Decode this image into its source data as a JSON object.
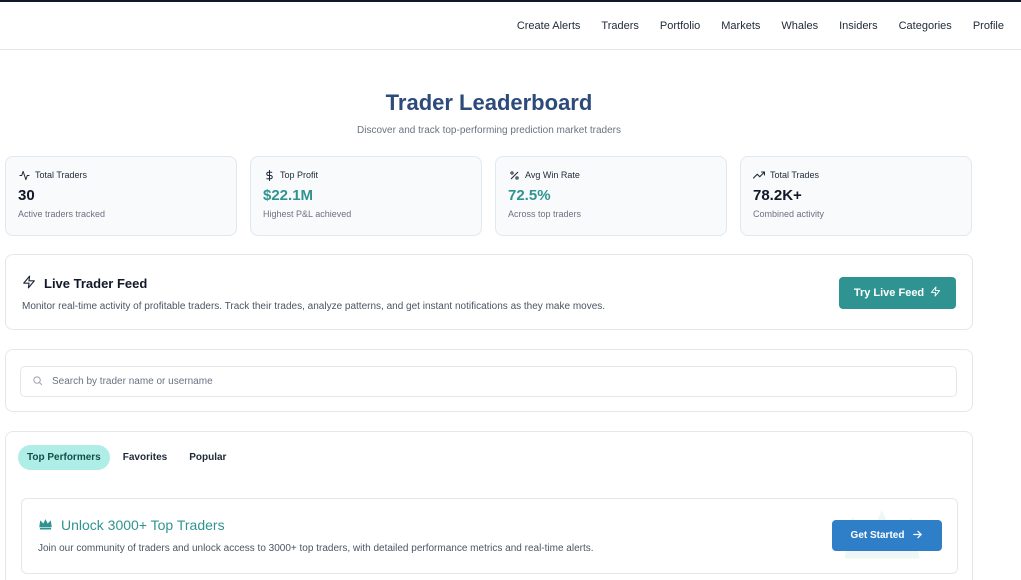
{
  "nav": {
    "items": [
      "Create Alerts",
      "Traders",
      "Portfolio",
      "Markets",
      "Whales",
      "Insiders",
      "Categories",
      "Profile"
    ]
  },
  "hero": {
    "title": "Trader Leaderboard",
    "subtitle": "Discover and track top-performing prediction market traders"
  },
  "stats": [
    {
      "icon": "activity-icon",
      "label": "Total Traders",
      "value": "30",
      "caption": "Active traders tracked"
    },
    {
      "icon": "dollar-icon",
      "label": "Top Profit",
      "value": "$22.1M",
      "caption": "Highest P&L achieved"
    },
    {
      "icon": "percent-icon",
      "label": "Avg Win Rate",
      "value": "72.5%",
      "caption": "Across top traders"
    },
    {
      "icon": "trending-up-icon",
      "label": "Total Trades",
      "value": "78.2K+",
      "caption": "Combined activity"
    }
  ],
  "feed": {
    "title": "Live Trader Feed",
    "description": "Monitor real-time activity of profitable traders. Track their trades, analyze patterns, and get instant notifications as they make moves.",
    "button_label": "Try Live Feed"
  },
  "search": {
    "placeholder": "Search by trader name or username",
    "value": ""
  },
  "tabs": [
    {
      "label": "Top Performers",
      "active": true
    },
    {
      "label": "Favorites",
      "active": false
    },
    {
      "label": "Popular",
      "active": false
    }
  ],
  "unlock": {
    "title": "Unlock 3000+ Top Traders",
    "description": "Join our community of traders and unlock access to 3000+ top traders, with detailed performance metrics and real-time alerts.",
    "button_label": "Get Started"
  },
  "colors": {
    "accent_teal": "#2f9491",
    "primary_blue": "#2f7ec8",
    "title_navy": "#2c4a7a",
    "active_tab_bg": "#aeeee6"
  }
}
